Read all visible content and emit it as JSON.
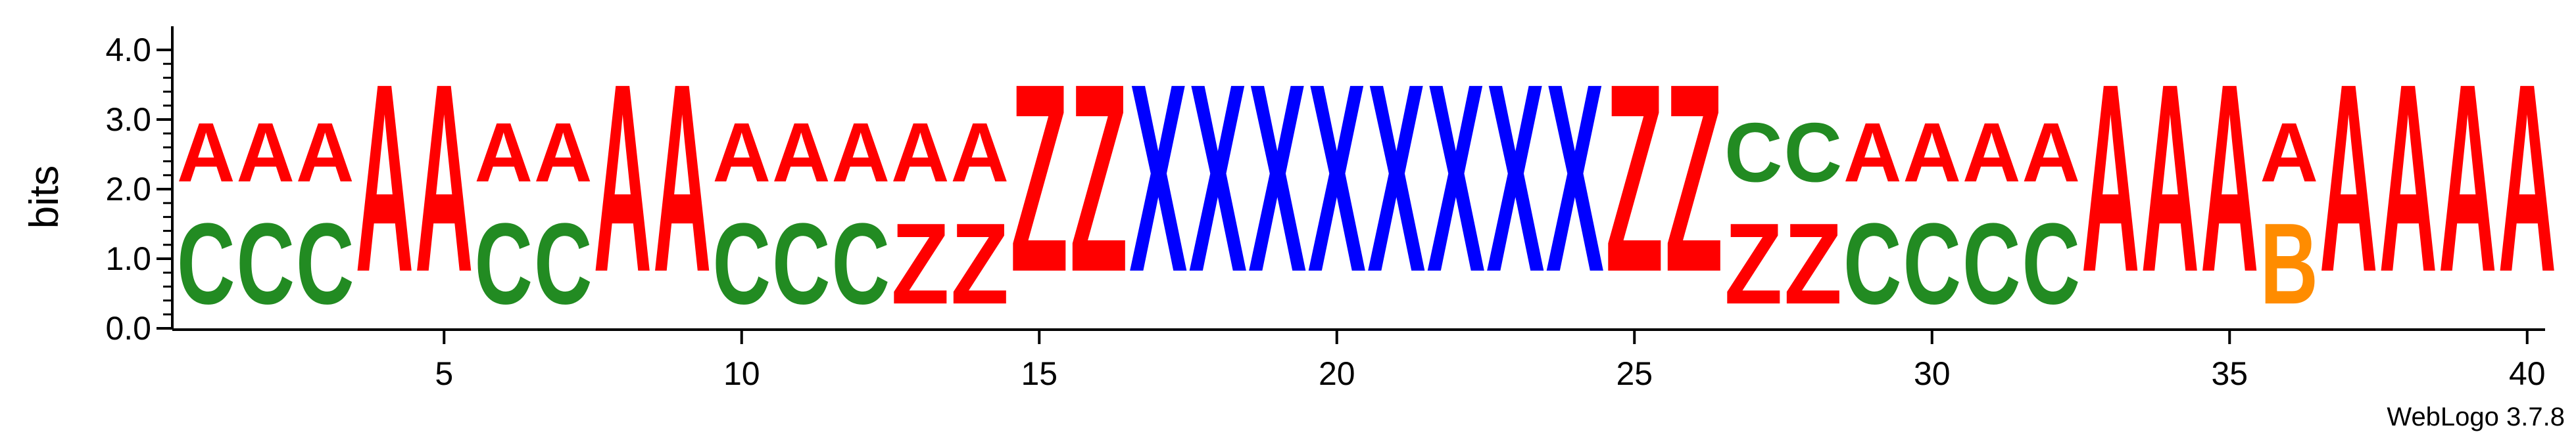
{
  "chart_data": {
    "type": "sequence-logo",
    "ylabel": "bits",
    "ylim": [
      0,
      4.0
    ],
    "y_ticks": [
      "0.0",
      "1.0",
      "2.0",
      "3.0",
      "4.0"
    ],
    "x_ticks": [
      "5",
      "10",
      "15",
      "20",
      "25",
      "30",
      "35",
      "40"
    ],
    "x_tick_values": [
      5,
      10,
      15,
      20,
      25,
      30,
      35,
      40
    ],
    "colors": {
      "A": "#ff0000",
      "C": "#228b22",
      "Z": "#ff0000",
      "X": "#0000ff",
      "B": "#ff8c00"
    },
    "positions": [
      {
        "pos": 1,
        "stack": [
          {
            "letter": "C",
            "bits": 1.85
          },
          {
            "letter": "A",
            "bits": 1.35
          }
        ]
      },
      {
        "pos": 2,
        "stack": [
          {
            "letter": "C",
            "bits": 1.85
          },
          {
            "letter": "A",
            "bits": 1.35
          }
        ]
      },
      {
        "pos": 3,
        "stack": [
          {
            "letter": "C",
            "bits": 1.85
          },
          {
            "letter": "A",
            "bits": 1.35
          }
        ]
      },
      {
        "pos": 4,
        "stack": [
          {
            "letter": "A",
            "bits": 4.3
          }
        ]
      },
      {
        "pos": 5,
        "stack": [
          {
            "letter": "A",
            "bits": 4.3
          }
        ]
      },
      {
        "pos": 6,
        "stack": [
          {
            "letter": "C",
            "bits": 1.85
          },
          {
            "letter": "A",
            "bits": 1.35
          }
        ]
      },
      {
        "pos": 7,
        "stack": [
          {
            "letter": "C",
            "bits": 1.85
          },
          {
            "letter": "A",
            "bits": 1.35
          }
        ]
      },
      {
        "pos": 8,
        "stack": [
          {
            "letter": "A",
            "bits": 4.3
          }
        ]
      },
      {
        "pos": 9,
        "stack": [
          {
            "letter": "A",
            "bits": 4.3
          }
        ]
      },
      {
        "pos": 10,
        "stack": [
          {
            "letter": "C",
            "bits": 1.85
          },
          {
            "letter": "A",
            "bits": 1.35
          }
        ]
      },
      {
        "pos": 11,
        "stack": [
          {
            "letter": "C",
            "bits": 1.85
          },
          {
            "letter": "A",
            "bits": 1.35
          }
        ]
      },
      {
        "pos": 12,
        "stack": [
          {
            "letter": "C",
            "bits": 1.85
          },
          {
            "letter": "A",
            "bits": 1.35
          }
        ]
      },
      {
        "pos": 13,
        "stack": [
          {
            "letter": "Z",
            "bits": 1.85
          },
          {
            "letter": "A",
            "bits": 1.35
          }
        ]
      },
      {
        "pos": 14,
        "stack": [
          {
            "letter": "Z",
            "bits": 1.85
          },
          {
            "letter": "A",
            "bits": 1.35
          }
        ]
      },
      {
        "pos": 15,
        "stack": [
          {
            "letter": "Z",
            "bits": 4.3
          }
        ]
      },
      {
        "pos": 16,
        "stack": [
          {
            "letter": "Z",
            "bits": 4.3
          }
        ]
      },
      {
        "pos": 17,
        "stack": [
          {
            "letter": "X",
            "bits": 4.3
          }
        ]
      },
      {
        "pos": 18,
        "stack": [
          {
            "letter": "X",
            "bits": 4.3
          }
        ]
      },
      {
        "pos": 19,
        "stack": [
          {
            "letter": "X",
            "bits": 4.3
          }
        ]
      },
      {
        "pos": 20,
        "stack": [
          {
            "letter": "X",
            "bits": 4.3
          }
        ]
      },
      {
        "pos": 21,
        "stack": [
          {
            "letter": "X",
            "bits": 4.3
          }
        ]
      },
      {
        "pos": 22,
        "stack": [
          {
            "letter": "X",
            "bits": 4.3
          }
        ]
      },
      {
        "pos": 23,
        "stack": [
          {
            "letter": "X",
            "bits": 4.3
          }
        ]
      },
      {
        "pos": 24,
        "stack": [
          {
            "letter": "X",
            "bits": 4.3
          }
        ]
      },
      {
        "pos": 25,
        "stack": [
          {
            "letter": "Z",
            "bits": 4.3
          }
        ]
      },
      {
        "pos": 26,
        "stack": [
          {
            "letter": "Z",
            "bits": 4.3
          }
        ]
      },
      {
        "pos": 27,
        "stack": [
          {
            "letter": "Z",
            "bits": 1.85
          },
          {
            "letter": "C",
            "bits": 1.35
          }
        ]
      },
      {
        "pos": 28,
        "stack": [
          {
            "letter": "Z",
            "bits": 1.85
          },
          {
            "letter": "C",
            "bits": 1.35
          }
        ]
      },
      {
        "pos": 29,
        "stack": [
          {
            "letter": "C",
            "bits": 1.85
          },
          {
            "letter": "A",
            "bits": 1.35
          }
        ]
      },
      {
        "pos": 30,
        "stack": [
          {
            "letter": "C",
            "bits": 1.85
          },
          {
            "letter": "A",
            "bits": 1.35
          }
        ]
      },
      {
        "pos": 31,
        "stack": [
          {
            "letter": "C",
            "bits": 1.85
          },
          {
            "letter": "A",
            "bits": 1.35
          }
        ]
      },
      {
        "pos": 32,
        "stack": [
          {
            "letter": "C",
            "bits": 1.85
          },
          {
            "letter": "A",
            "bits": 1.35
          }
        ]
      },
      {
        "pos": 33,
        "stack": [
          {
            "letter": "A",
            "bits": 4.3
          }
        ]
      },
      {
        "pos": 34,
        "stack": [
          {
            "letter": "A",
            "bits": 4.3
          }
        ]
      },
      {
        "pos": 35,
        "stack": [
          {
            "letter": "A",
            "bits": 4.3
          }
        ]
      },
      {
        "pos": 36,
        "stack": [
          {
            "letter": "B",
            "bits": 1.85
          },
          {
            "letter": "A",
            "bits": 1.35
          }
        ]
      },
      {
        "pos": 37,
        "stack": [
          {
            "letter": "A",
            "bits": 4.3
          }
        ]
      },
      {
        "pos": 38,
        "stack": [
          {
            "letter": "A",
            "bits": 4.3
          }
        ]
      },
      {
        "pos": 39,
        "stack": [
          {
            "letter": "A",
            "bits": 4.3
          }
        ]
      },
      {
        "pos": 40,
        "stack": [
          {
            "letter": "A",
            "bits": 4.3
          }
        ]
      }
    ]
  },
  "credit": "WebLogo 3.7.8"
}
